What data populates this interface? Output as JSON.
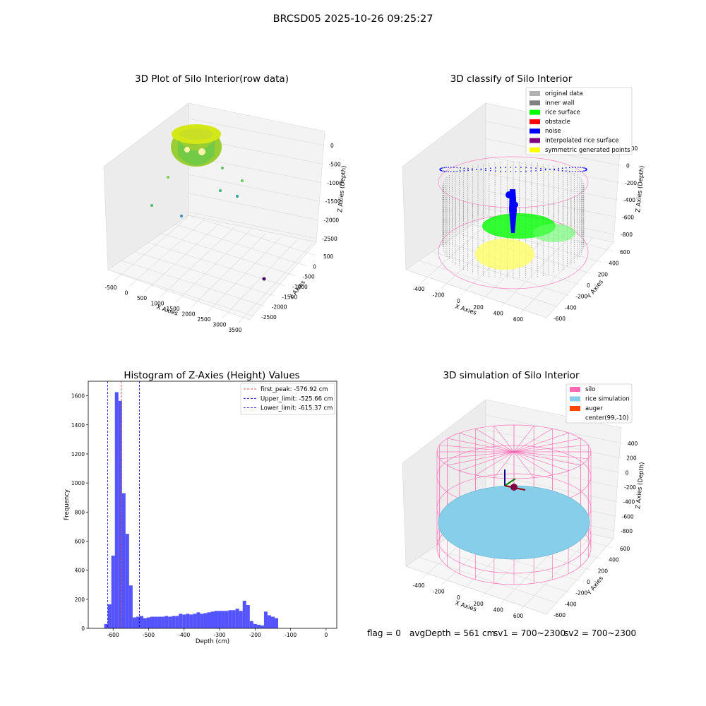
{
  "figure": {
    "suptitle": "BRCSD05 2025-10-26 09:25:27"
  },
  "status": {
    "flag": "flag = 0",
    "avg_depth": "avgDepth = 561 cm",
    "sv1": "sv1 = 700~2300",
    "sv2": "sv2 = 700~2300"
  },
  "colors": {
    "hist_bar": "#4b4bff",
    "first_peak": "#e02020",
    "limits": "#0000cc",
    "silo": "#ff69b4",
    "rice_simulation": "#87ceeb",
    "auger": "#ff4500",
    "original_data": "#b0b0b0",
    "inner_wall": "#808080",
    "rice_surface": "#00ff00",
    "obstacle": "#ff0000",
    "noise": "#0000ff",
    "interpolated_rice_surface": "#800080",
    "symmetric_generated_points": "#ffff00"
  },
  "chart_data": [
    {
      "type": "scatter",
      "projection": "3d",
      "title": "3D Plot of Silo Interior(row data)",
      "xlabel": "X Axies",
      "ylabel": "Y Axies",
      "zlabel": "Z Axies (Depth)",
      "xticks": [
        "-500",
        "0",
        "500",
        "1000",
        "1500",
        "2000",
        "2500",
        "3000",
        "3500"
      ],
      "yticks": [
        "500",
        "0",
        "-500",
        "-1000",
        "-1500",
        "-2000",
        "-2500"
      ],
      "zticks": [
        "0",
        "-500",
        "-1000",
        "-1500",
        "-2000",
        "-2500"
      ],
      "colormap": "viridis",
      "grid": true
    },
    {
      "type": "scatter",
      "projection": "3d",
      "title": "3D classify of Silo Interior",
      "xlabel": "X Axies",
      "ylabel": "Y Axies",
      "zlabel": "Z Axies (Depth)",
      "xticks": [
        "-400",
        "-200",
        "0",
        "200",
        "400",
        "600"
      ],
      "yticks": [
        "600",
        "400",
        "200",
        "0",
        "-200",
        "-400",
        "-600"
      ],
      "zticks": [
        "200",
        "0",
        "-200",
        "-400",
        "-600",
        "-800"
      ],
      "legend_position": "top-right",
      "legend": [
        {
          "label": "original data",
          "color": "#b0b0b0"
        },
        {
          "label": "inner wall",
          "color": "#808080"
        },
        {
          "label": "rice surface",
          "color": "#00ff00"
        },
        {
          "label": "obstacle",
          "color": "#ff0000"
        },
        {
          "label": "noise",
          "color": "#0000ff"
        },
        {
          "label": "interpolated rice surface",
          "color": "#800080"
        },
        {
          "label": "symmetric generated points",
          "color": "#ffff00"
        }
      ],
      "grid": true
    },
    {
      "type": "bar",
      "title": "Histogram of Z-Axies (Height) Values",
      "xlabel": "Depth (cm)",
      "ylabel": "Frequency",
      "xlim": [
        -670,
        30
      ],
      "ylim": [
        0,
        1700
      ],
      "xticks": [
        "-600",
        "-500",
        "-400",
        "-300",
        "-200",
        "-100",
        "0"
      ],
      "yticks": [
        "0",
        "200",
        "400",
        "600",
        "800",
        "1000",
        "1200",
        "1400",
        "1600"
      ],
      "bin_start": -625,
      "bin_width": 10,
      "values": [
        30,
        165,
        500,
        1625,
        1565,
        930,
        650,
        295,
        75,
        80,
        85,
        70,
        75,
        80,
        80,
        80,
        80,
        85,
        80,
        85,
        85,
        100,
        95,
        100,
        95,
        100,
        110,
        100,
        105,
        110,
        115,
        120,
        120,
        120,
        120,
        125,
        125,
        135,
        120,
        190,
        160,
        50,
        30,
        25,
        20,
        115,
        90,
        80,
        70
      ],
      "lines": [
        {
          "label": "first_peak: -576.92 cm",
          "x": -576.92,
          "style": "dashed",
          "color": "#e02020"
        },
        {
          "label": "Upper_limit: -525.66 cm",
          "x": -525.66,
          "style": "dashed",
          "color": "#0000cc"
        },
        {
          "label": "Lower_limit: -615.37 cm",
          "x": -615.37,
          "style": "dashed",
          "color": "#0000cc"
        }
      ],
      "legend_position": "top-right",
      "grid": false
    },
    {
      "type": "scatter",
      "projection": "3d",
      "title": "3D simulation of Silo Interior",
      "xlabel": "X Axies",
      "ylabel": "Y Axies",
      "zlabel": "Z Axies (Depth)",
      "xticks": [
        "-400",
        "-200",
        "0",
        "200",
        "400",
        "600"
      ],
      "yticks": [
        "600",
        "400",
        "200",
        "0",
        "-200",
        "-400",
        "-600"
      ],
      "zticks": [
        "400",
        "200",
        "0",
        "-200",
        "-400",
        "-600",
        "-800"
      ],
      "legend_position": "top-right",
      "legend": [
        {
          "label": "silo",
          "color": "#ff69b4"
        },
        {
          "label": "rice simulation",
          "color": "#87ceeb"
        },
        {
          "label": "auger",
          "color": "#ff4500"
        },
        {
          "label": "center(99,-10)",
          "color": ""
        }
      ],
      "grid": true
    }
  ]
}
